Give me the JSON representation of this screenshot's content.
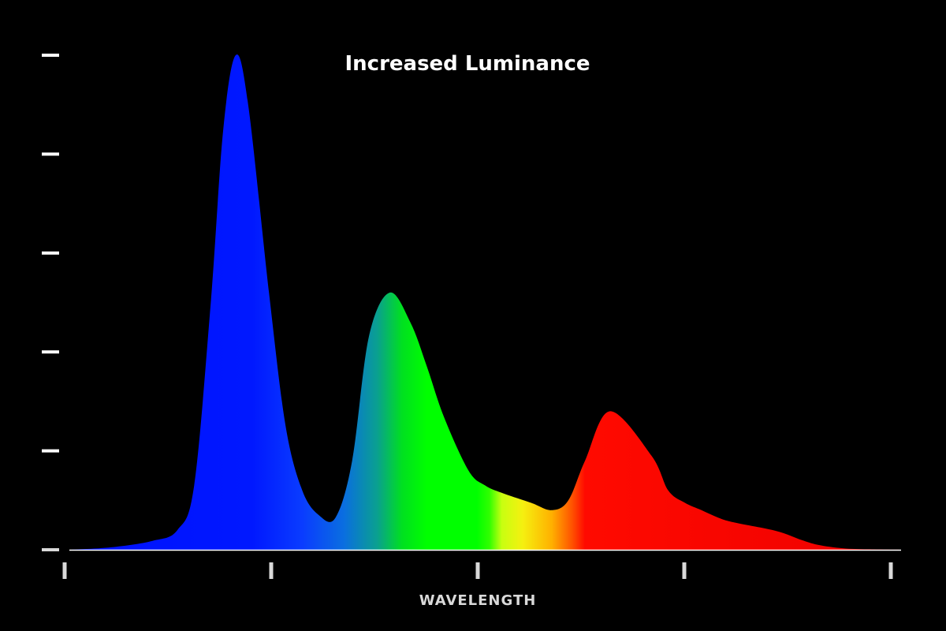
{
  "chart_data": {
    "type": "area",
    "title": "Increased Luminance",
    "xlabel": "WAVELENGTH",
    "ylabel": "",
    "x_ticks": 5,
    "y_ticks": 6,
    "xlim": [
      0,
      1
    ],
    "ylim": [
      0,
      1
    ],
    "grid": false,
    "colors": {
      "background": "#000000",
      "blue": "#0010ff",
      "green": "#00ff00",
      "yellow": "#f0ff00",
      "red": "#ff0000",
      "axis": "#ffffff",
      "tick": "#d9d9d9"
    },
    "series": [
      {
        "x": [
          0.0,
          0.05,
          0.1,
          0.13,
          0.15,
          0.17,
          0.185,
          0.2,
          0.215,
          0.24,
          0.26,
          0.28,
          0.3,
          0.32,
          0.34,
          0.36,
          0.385,
          0.41,
          0.43,
          0.45,
          0.48,
          0.5,
          0.52,
          0.555,
          0.58,
          0.6,
          0.62,
          0.65,
          0.7,
          0.72,
          0.74,
          0.76,
          0.78,
          0.8,
          0.85,
          0.88,
          0.9,
          0.93,
          0.96,
          1.0
        ],
        "values": [
          0.0,
          0.005,
          0.018,
          0.04,
          0.13,
          0.5,
          0.85,
          1.0,
          0.9,
          0.52,
          0.25,
          0.12,
          0.07,
          0.065,
          0.18,
          0.43,
          0.52,
          0.46,
          0.37,
          0.27,
          0.16,
          0.13,
          0.115,
          0.095,
          0.08,
          0.1,
          0.18,
          0.28,
          0.19,
          0.12,
          0.095,
          0.08,
          0.065,
          0.055,
          0.038,
          0.02,
          0.01,
          0.003,
          0.001,
          0.0
        ]
      }
    ]
  }
}
